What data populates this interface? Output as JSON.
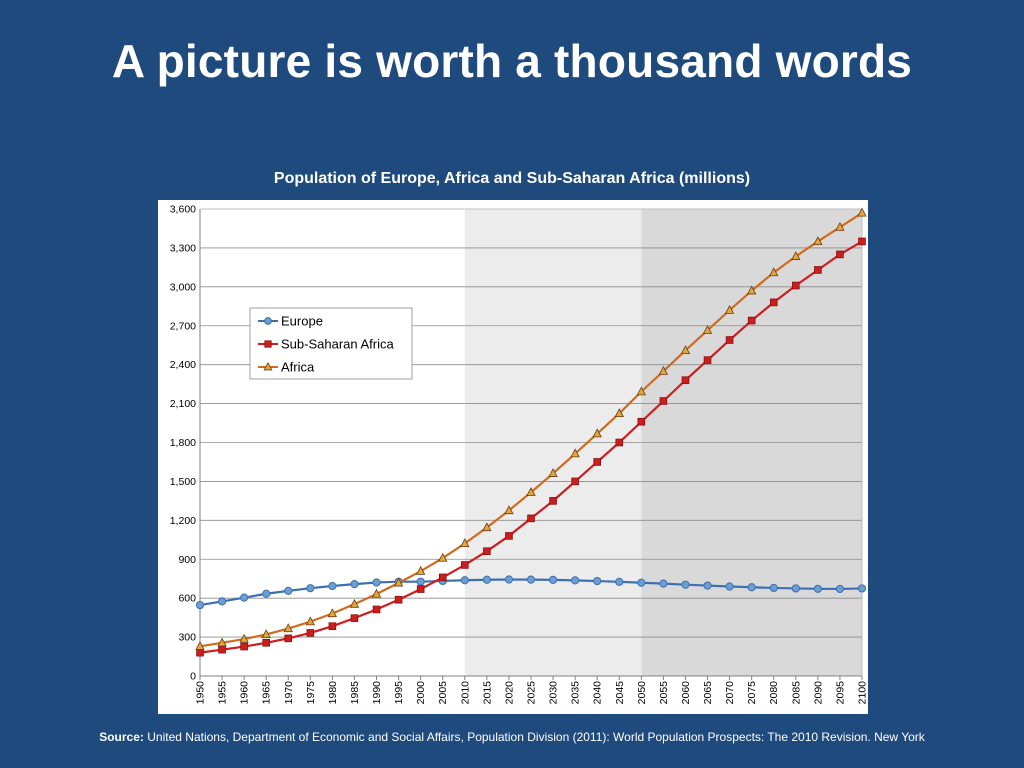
{
  "slide": {
    "title": "A picture is worth a thousand words"
  },
  "source": {
    "label": "Source:",
    "text": "United Nations, Department of Economic and Social Affairs, Population Division (2011): World Population Prospects: The 2010 Revision. New York"
  },
  "chart_data": {
    "type": "line",
    "title": "Population of Europe, Africa and Sub-Saharan Africa (millions)",
    "xlabel": "",
    "ylabel": "",
    "x": [
      1950,
      1955,
      1960,
      1965,
      1970,
      1975,
      1980,
      1985,
      1990,
      1995,
      2000,
      2005,
      2010,
      2015,
      2020,
      2025,
      2030,
      2035,
      2040,
      2045,
      2050,
      2055,
      2060,
      2065,
      2070,
      2075,
      2080,
      2085,
      2090,
      2095,
      2100
    ],
    "xlim": [
      1950,
      2100
    ],
    "ylim": [
      0,
      3600
    ],
    "yticks": [
      0,
      300,
      600,
      900,
      1200,
      1500,
      1800,
      2100,
      2400,
      2700,
      3000,
      3300,
      3600
    ],
    "ytick_labels": [
      "0",
      "300",
      "600",
      "900",
      "1,200",
      "1,500",
      "1,800",
      "2,100",
      "2,400",
      "2,700",
      "3,000",
      "3,300",
      "3,600"
    ],
    "grid": true,
    "legend_position": "upper-left",
    "shaded_regions": [
      {
        "from": 2010,
        "to": 2050,
        "color": "#ececec"
      },
      {
        "from": 2050,
        "to": 2100,
        "color": "#d9d9d9"
      }
    ],
    "series": [
      {
        "name": "Europe",
        "color": "#3f6fae",
        "marker": "circle",
        "marker_fill": "#6a9fd4",
        "values": [
          547,
          575,
          604,
          634,
          656,
          677,
          694,
          708,
          721,
          727,
          727,
          733,
          738,
          742,
          744,
          743,
          741,
          737,
          732,
          726,
          719,
          712,
          704,
          697,
          690,
          684,
          679,
          675,
          672,
          671,
          675
        ]
      },
      {
        "name": "Sub-Saharan Africa",
        "color": "#cc1e1e",
        "marker": "square",
        "marker_fill": "#cc1e1e",
        "values": [
          180,
          203,
          227,
          256,
          290,
          332,
          384,
          446,
          513,
          588,
          670,
          760,
          856,
          962,
          1080,
          1215,
          1350,
          1500,
          1650,
          1800,
          1960,
          2120,
          2280,
          2435,
          2590,
          2740,
          2880,
          3010,
          3130,
          3250,
          3350
        ]
      },
      {
        "name": "Africa",
        "color": "#d26a1e",
        "marker": "triangle",
        "marker_fill": "#e0a83a",
        "values": [
          229,
          256,
          285,
          320,
          366,
          419,
          482,
          554,
          632,
          718,
          808,
          909,
          1022,
          1145,
          1276,
          1416,
          1562,
          1714,
          1868,
          2024,
          2192,
          2350,
          2510,
          2665,
          2820,
          2970,
          3110,
          3235,
          3350,
          3460,
          3570
        ]
      }
    ]
  }
}
